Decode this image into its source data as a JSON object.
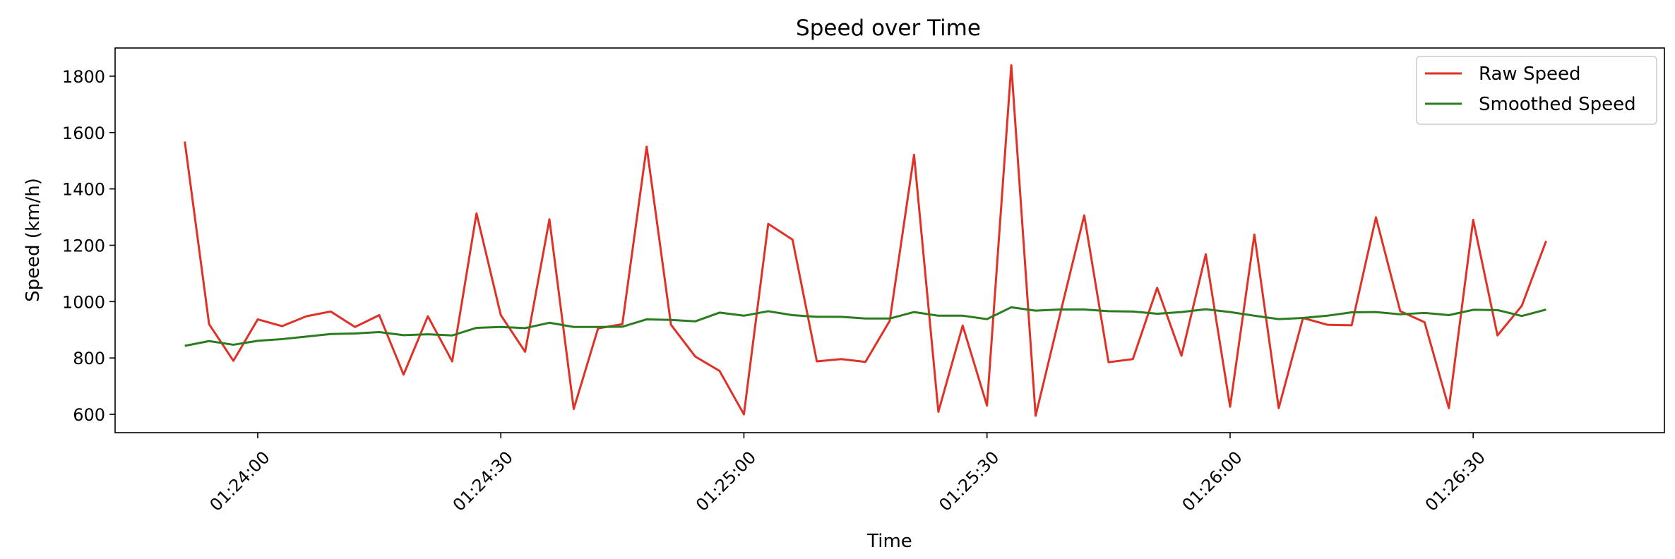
{
  "chart_data": {
    "type": "line",
    "title": "Speed over Time",
    "xlabel": "Time",
    "ylabel": "Speed (km/h)",
    "x_start": "01:23:51",
    "x_step_seconds": 3,
    "x_ticks": [
      "01:24:00",
      "01:24:30",
      "01:25:00",
      "01:25:30",
      "01:26:00",
      "01:26:30"
    ],
    "y_ticks": [
      600,
      800,
      1000,
      1200,
      1400,
      1600,
      1800
    ],
    "ylim": [
      535,
      1900
    ],
    "xlim_seconds": [
      -8.6,
      182.6
    ],
    "grid": false,
    "legend_position": "top-right",
    "series": [
      {
        "name": "Raw Speed",
        "color": "#e03127",
        "values": [
          1568,
          920,
          790,
          937,
          913,
          948,
          965,
          910,
          952,
          741,
          948,
          788,
          1313,
          952,
          822,
          1292,
          619,
          905,
          920,
          1550,
          918,
          805,
          754,
          600,
          1276,
          1220,
          788,
          796,
          786,
          932,
          1521,
          609,
          915,
          631,
          1839,
          595,
          953,
          1306,
          785,
          796,
          1049,
          808,
          1168,
          627,
          1238,
          622,
          942,
          918,
          916,
          1299,
          966,
          927,
          622,
          1290,
          880,
          985,
          1215
        ]
      },
      {
        "name": "Smoothed Speed",
        "color": "#2a7c1f",
        "values": [
          843,
          860,
          847,
          861,
          867,
          876,
          885,
          887,
          892,
          881,
          884,
          880,
          907,
          910,
          906,
          925,
          910,
          910,
          911,
          937,
          935,
          930,
          961,
          950,
          966,
          952,
          946,
          946,
          940,
          940,
          963,
          950,
          950,
          938,
          980,
          968,
          972,
          972,
          966,
          965,
          957,
          963,
          973,
          963,
          950,
          938,
          942,
          950,
          962,
          963,
          955,
          960,
          952,
          971,
          970,
          949,
          972
        ]
      }
    ]
  }
}
